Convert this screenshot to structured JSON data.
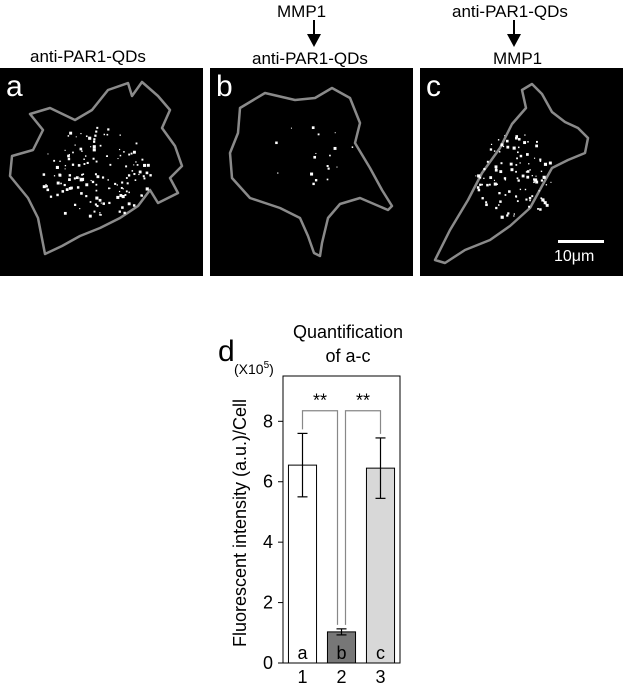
{
  "headers": {
    "a": {
      "top": "",
      "bottom": "anti-PAR1-QDs"
    },
    "b": {
      "top": "MMP1",
      "bottom": "anti-PAR1-QDs"
    },
    "c": {
      "top": "anti-PAR1-QDs",
      "bottom": "MMP1"
    }
  },
  "panels": [
    {
      "letter": "a"
    },
    {
      "letter": "b"
    },
    {
      "letter": "c",
      "scale_label": "10μm"
    }
  ],
  "chart_panel_letter": "d",
  "chart_data": {
    "type": "bar",
    "title": "Quantification of a-c",
    "title_lines": [
      "Quantification",
      "of a-c"
    ],
    "ylabel": "Fluorescent intensity (a.u.)/Cell",
    "multiplier": "(X10",
    "multiplier_exp": "5",
    "multiplier_close": ")",
    "ylim": [
      0,
      9.5
    ],
    "yticks": [
      0,
      2,
      4,
      6,
      8
    ],
    "categories": [
      "1",
      "2",
      "3"
    ],
    "bar_labels": [
      "a",
      "b",
      "c"
    ],
    "values": [
      6.55,
      1.03,
      6.45
    ],
    "errors": [
      1.05,
      0.1,
      1.0
    ],
    "colors": [
      "#ffffff",
      "#777777",
      "#d8d8d8"
    ],
    "significance": [
      {
        "from": 0,
        "to": 1,
        "label": "**"
      },
      {
        "from": 1,
        "to": 2,
        "label": "**"
      }
    ]
  }
}
